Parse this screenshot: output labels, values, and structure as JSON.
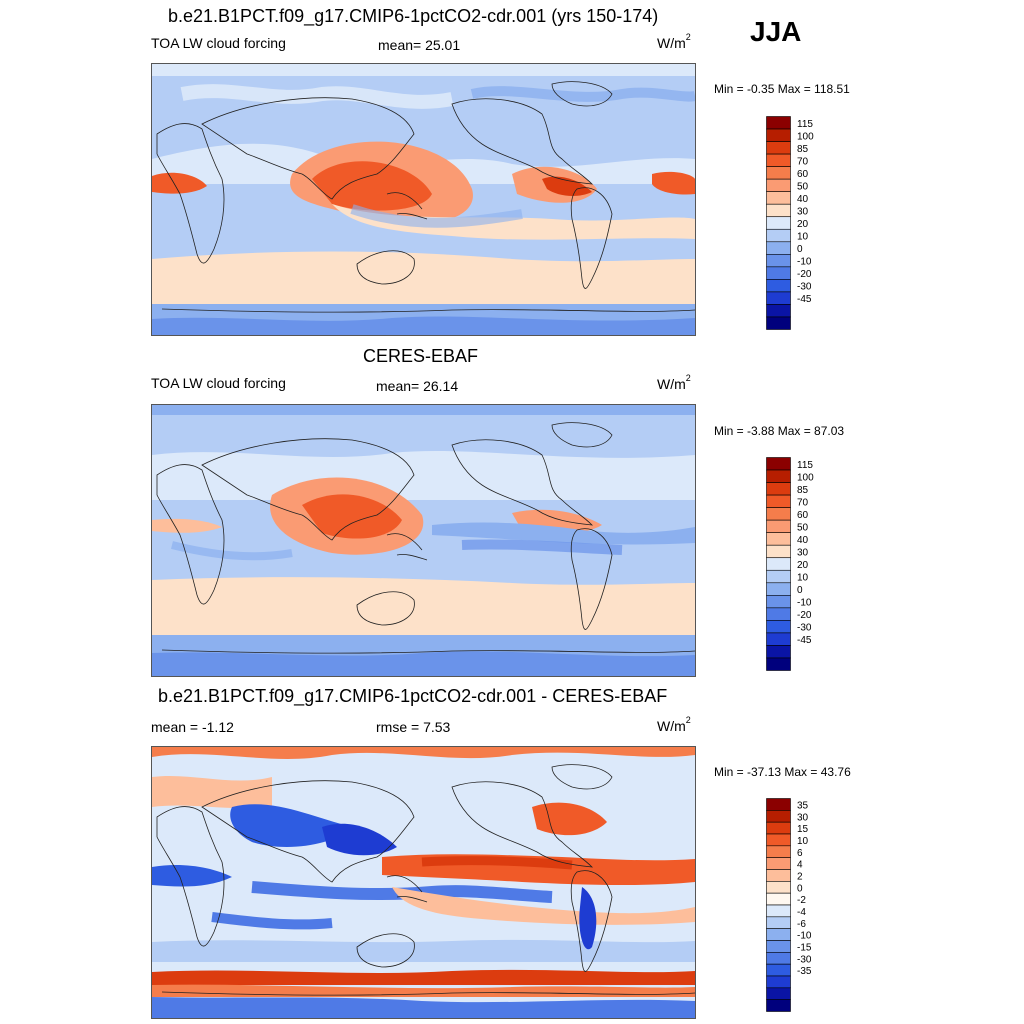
{
  "season": "JJA",
  "panels": [
    {
      "id": "model",
      "title": "b.e21.B1PCT.f09_g17.CMIP6-1pctCO2-cdr.001 (yrs 150-174)",
      "left_label": "TOA LW cloud forcing",
      "center_label": "mean=  25.01",
      "units_base": "W/m",
      "units_sup": "2",
      "minmax": "Min =  -0.35 Max = 118.51",
      "colorbar": {
        "colors": [
          "#8b0000",
          "#b61e00",
          "#dc3c0f",
          "#f05a28",
          "#f57d4b",
          "#fa9b73",
          "#fdbe9b",
          "#fde1c9",
          "#dce9fa",
          "#b4cdf5",
          "#8cb0ef",
          "#6a93ea",
          "#4f7ae6",
          "#2e5ce1",
          "#1e3cd2",
          "#0a14a5",
          "#00007d"
        ],
        "labels": [
          "115",
          "100",
          "85",
          "70",
          "60",
          "50",
          "40",
          "30",
          "20",
          "10",
          "0",
          "-10",
          "-20",
          "-30",
          "-45"
        ]
      }
    },
    {
      "id": "obs",
      "title": "CERES-EBAF",
      "left_label": "TOA LW cloud forcing",
      "center_label": "mean=  26.14",
      "units_base": "W/m",
      "units_sup": "2",
      "minmax": "Min =  -3.88 Max =  87.03",
      "colorbar": {
        "colors": [
          "#8b0000",
          "#b61e00",
          "#dc3c0f",
          "#f05a28",
          "#f57d4b",
          "#fa9b73",
          "#fdbe9b",
          "#fde1c9",
          "#dce9fa",
          "#b4cdf5",
          "#8cb0ef",
          "#6a93ea",
          "#4f7ae6",
          "#2e5ce1",
          "#1e3cd2",
          "#0a14a5",
          "#00007d"
        ],
        "labels": [
          "115",
          "100",
          "85",
          "70",
          "60",
          "50",
          "40",
          "30",
          "20",
          "10",
          "0",
          "-10",
          "-20",
          "-30",
          "-45"
        ]
      }
    },
    {
      "id": "diff",
      "title": "b.e21.B1PCT.f09_g17.CMIP6-1pctCO2-cdr.001 - CERES-EBAF",
      "left_label": "mean =  -1.12",
      "center_label": "rmse =   7.53",
      "units_base": "W/m",
      "units_sup": "2",
      "minmax": "Min = -37.13 Max =  43.76",
      "colorbar": {
        "colors": [
          "#8b0000",
          "#b61e00",
          "#dc3c0f",
          "#f05a28",
          "#f57d4b",
          "#fa9b73",
          "#fdbe9b",
          "#fde1c9",
          "#fff8f0",
          "#dce9fa",
          "#b4cdf5",
          "#8cb0ef",
          "#6a93ea",
          "#4f7ae6",
          "#2e5ce1",
          "#1e3cd2",
          "#0a14a5",
          "#00007d"
        ],
        "labels": [
          "35",
          "30",
          "15",
          "10",
          "6",
          "4",
          "2",
          "0",
          "-2",
          "-4",
          "-6",
          "-10",
          "-15",
          "-30",
          "-35"
        ]
      }
    }
  ],
  "chart_data": [
    {
      "type": "heatmap",
      "title": "b.e21.B1PCT.f09_g17.CMIP6-1pctCO2-cdr.001 (yrs 150-174)",
      "subtitle": "TOA LW cloud forcing",
      "season": "JJA",
      "units": "W/m^2",
      "mean": 25.01,
      "min": -0.35,
      "max": 118.51,
      "contour_levels": [
        -45,
        -30,
        -20,
        -10,
        0,
        10,
        20,
        30,
        40,
        50,
        60,
        70,
        85,
        100,
        115
      ]
    },
    {
      "type": "heatmap",
      "title": "CERES-EBAF",
      "subtitle": "TOA LW cloud forcing",
      "season": "JJA",
      "units": "W/m^2",
      "mean": 26.14,
      "min": -3.88,
      "max": 87.03,
      "contour_levels": [
        -45,
        -30,
        -20,
        -10,
        0,
        10,
        20,
        30,
        40,
        50,
        60,
        70,
        85,
        100,
        115
      ]
    },
    {
      "type": "heatmap",
      "title": "b.e21.B1PCT.f09_g17.CMIP6-1pctCO2-cdr.001 - CERES-EBAF",
      "season": "JJA",
      "units": "W/m^2",
      "mean": -1.12,
      "rmse": 7.53,
      "min": -37.13,
      "max": 43.76,
      "contour_levels": [
        -35,
        -30,
        -15,
        -10,
        -6,
        -4,
        -2,
        0,
        2,
        4,
        6,
        10,
        15,
        30,
        35
      ]
    }
  ]
}
